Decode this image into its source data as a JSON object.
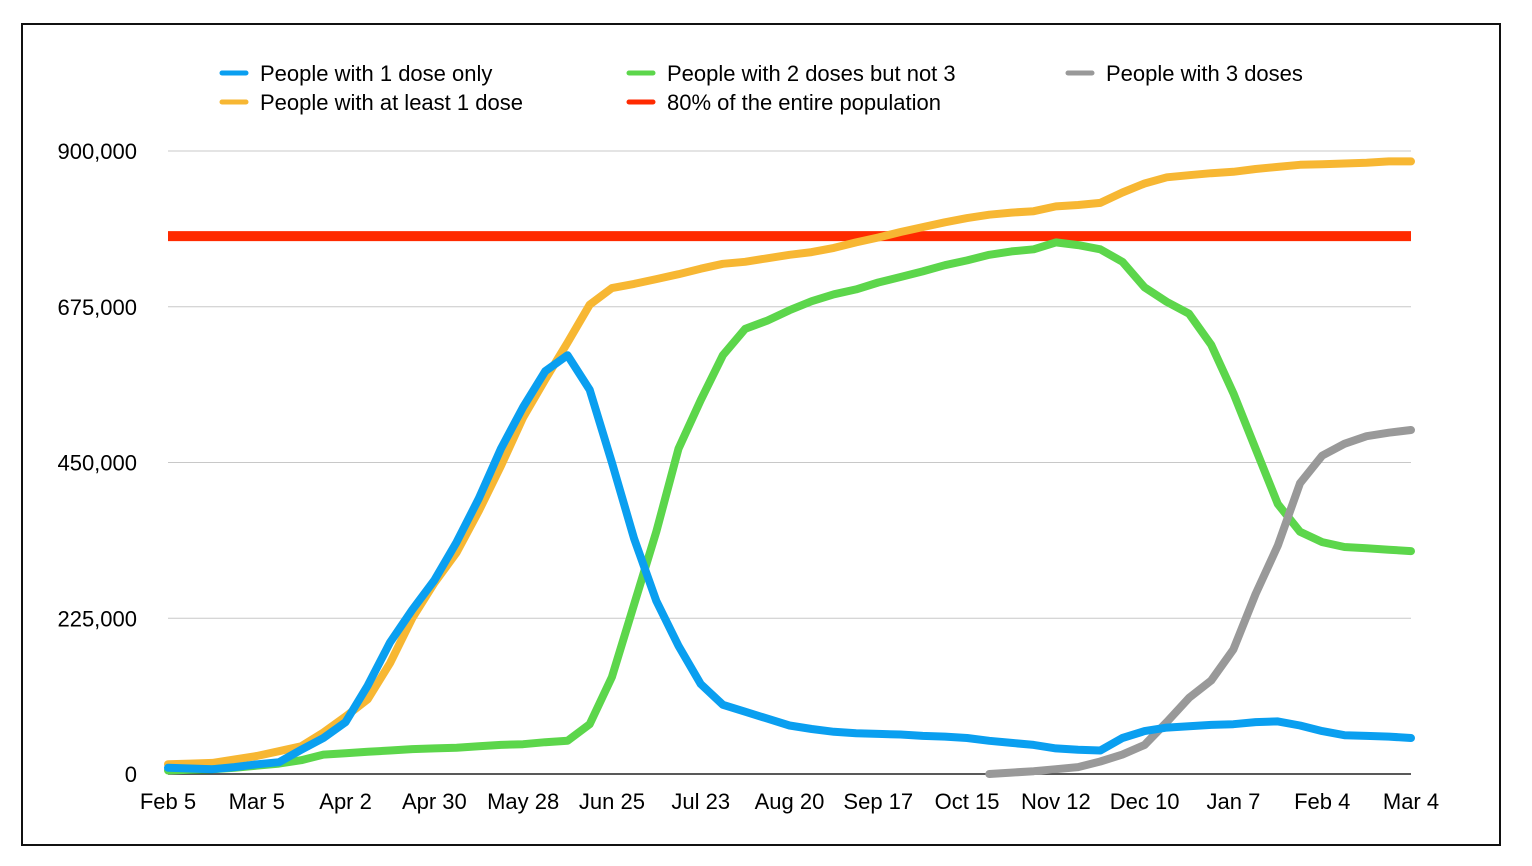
{
  "chart_data": {
    "type": "line",
    "title": "",
    "xlabel": "",
    "ylabel": "",
    "ylim": [
      0,
      900000
    ],
    "y_ticks": [
      0,
      225000,
      450000,
      675000,
      900000
    ],
    "y_tick_labels": [
      "0",
      "225,000",
      "450,000",
      "675,000",
      "900,000"
    ],
    "x_tick_labels": [
      "Feb 5",
      "Mar 5",
      "Apr 2",
      "Apr 30",
      "May 28",
      "Jun 25",
      "Jul 23",
      "Aug 20",
      "Sep 17",
      "Oct 15",
      "Nov 12",
      "Dec 10",
      "Jan 7",
      "Feb 4",
      "Mar 4"
    ],
    "x_index_range": [
      0,
      56
    ],
    "grid": "horizontal",
    "legend": "top",
    "series": [
      {
        "name": "People with 1 dose only",
        "color": "#0a9ff0",
        "x": [
          0,
          1,
          2,
          3,
          4,
          5,
          6,
          7,
          8,
          9,
          10,
          11,
          12,
          13,
          14,
          15,
          16,
          17,
          18,
          19,
          20,
          21,
          22,
          23,
          24,
          25,
          26,
          27,
          28,
          29,
          30,
          31,
          32,
          33,
          34,
          35,
          36,
          37,
          38,
          39,
          40,
          41,
          42,
          43,
          44,
          45,
          46,
          47,
          48,
          49,
          50,
          51,
          52,
          53,
          54,
          55,
          56
        ],
        "values": [
          9000,
          8000,
          7000,
          10000,
          14000,
          17000,
          35000,
          52000,
          75000,
          128000,
          190000,
          237000,
          280000,
          335000,
          398000,
          470000,
          530000,
          582000,
          605000,
          555000,
          450000,
          340000,
          250000,
          185000,
          130000,
          100000,
          90000,
          80000,
          70000,
          65000,
          61000,
          59000,
          58000,
          57000,
          55000,
          54000,
          52000,
          48000,
          45000,
          42000,
          37000,
          35000,
          34000,
          52000,
          62000,
          67000,
          69000,
          71000,
          72000,
          75000,
          76000,
          70000,
          62000,
          56000,
          55000,
          54000,
          52000
        ]
      },
      {
        "name": "People with at least 1 dose",
        "color": "#f7b733",
        "x": [
          0,
          1,
          2,
          3,
          4,
          5,
          6,
          7,
          8,
          9,
          10,
          11,
          12,
          13,
          14,
          15,
          16,
          17,
          18,
          19,
          20,
          21,
          22,
          23,
          24,
          25,
          26,
          27,
          28,
          29,
          30,
          31,
          32,
          33,
          34,
          35,
          36,
          37,
          38,
          39,
          40,
          41,
          42,
          43,
          44,
          45,
          46,
          47,
          48,
          49,
          50,
          51,
          52,
          53,
          54,
          55,
          56
        ],
        "values": [
          14000,
          15000,
          16000,
          21000,
          26000,
          33000,
          40000,
          60000,
          83000,
          108000,
          160000,
          225000,
          276000,
          320000,
          380000,
          445000,
          515000,
          570000,
          623000,
          678000,
          702000,
          708000,
          715000,
          722000,
          730000,
          737000,
          740000,
          745000,
          750000,
          754000,
          760000,
          768000,
          775000,
          783000,
          790000,
          797000,
          803000,
          808000,
          811000,
          813000,
          820000,
          822000,
          825000,
          840000,
          853000,
          862000,
          865000,
          868000,
          870000,
          874000,
          877000,
          880000,
          881000,
          882000,
          883000,
          885000,
          885000
        ]
      },
      {
        "name": "People with 2 doses but not 3",
        "color": "#5cd64b",
        "x": [
          0,
          1,
          2,
          3,
          4,
          5,
          6,
          7,
          8,
          9,
          10,
          11,
          12,
          13,
          14,
          15,
          16,
          17,
          18,
          19,
          20,
          21,
          22,
          23,
          24,
          25,
          26,
          27,
          28,
          29,
          30,
          31,
          32,
          33,
          34,
          35,
          36,
          37,
          38,
          39,
          40,
          41,
          42,
          43,
          44,
          45,
          46,
          47,
          48,
          49,
          50,
          51,
          52,
          53,
          54,
          55,
          56
        ],
        "values": [
          5000,
          6000,
          7000,
          9000,
          12000,
          15000,
          20000,
          28000,
          30000,
          32000,
          34000,
          36000,
          37000,
          38000,
          40000,
          42000,
          43000,
          46000,
          48000,
          72000,
          140000,
          245000,
          350000,
          470000,
          540000,
          605000,
          643000,
          655000,
          670000,
          683000,
          693000,
          700000,
          710000,
          718000,
          726000,
          735000,
          742000,
          750000,
          755000,
          758000,
          768000,
          764000,
          758000,
          740000,
          703000,
          682000,
          665000,
          620000,
          550000,
          470000,
          390000,
          350000,
          335000,
          328000,
          326000,
          324000,
          322000
        ]
      },
      {
        "name": "People with 3 doses",
        "color": "#999999",
        "x": [
          37,
          38,
          39,
          40,
          41,
          42,
          43,
          44,
          45,
          46,
          47,
          48,
          49,
          50,
          51,
          52,
          53,
          54,
          55,
          56
        ],
        "values": [
          0,
          2000,
          4000,
          7000,
          10000,
          18000,
          28000,
          42000,
          75000,
          110000,
          135000,
          180000,
          260000,
          330000,
          420000,
          460000,
          477000,
          488000,
          493000,
          497000
        ]
      },
      {
        "name": "80% of the entire population",
        "color": "#ff2a00",
        "x": [
          0,
          56
        ],
        "values": [
          777000,
          777000
        ]
      }
    ]
  },
  "legend": {
    "items": [
      {
        "label": "People with 1 dose only",
        "color": "#0a9ff0"
      },
      {
        "label": "People with 2 doses but not 3",
        "color": "#5cd64b"
      },
      {
        "label": "People with 3 doses",
        "color": "#999999"
      },
      {
        "label": "People with at least 1 dose",
        "color": "#f7b733"
      },
      {
        "label": "80% of the entire population",
        "color": "#ff2a00"
      }
    ]
  }
}
